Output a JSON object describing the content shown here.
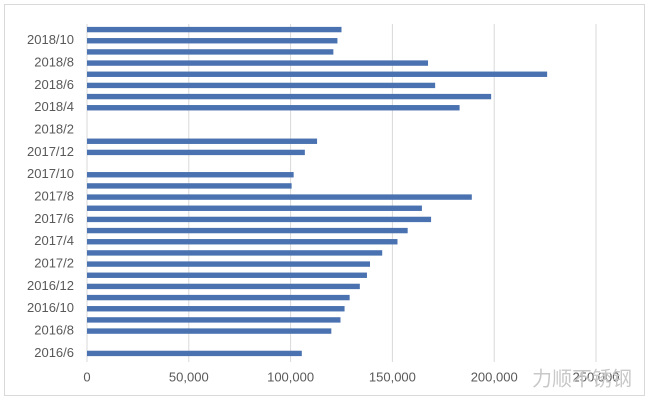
{
  "chart_data": {
    "type": "hbar",
    "categories": [
      "2016/6",
      null,
      "2016/8",
      null,
      "2016/10",
      null,
      "2016/12",
      null,
      "2017/2",
      null,
      "2017/4",
      null,
      "2017/6",
      null,
      "2017/8",
      null,
      "2017/10",
      null,
      "2017/12",
      null,
      "2018/2",
      null,
      "2018/4",
      null,
      "2018/6",
      null,
      "2018/8",
      null,
      "2018/10",
      null
    ],
    "values": [
      105500,
      null,
      120000,
      124500,
      126500,
      129000,
      134000,
      137500,
      139000,
      145000,
      152500,
      157500,
      169000,
      164500,
      189000,
      100500,
      101500,
      null,
      107000,
      113000,
      null,
      null,
      183000,
      198500,
      171000,
      226000,
      167500,
      121000,
      123000,
      125000
    ],
    "color": "#4a72b0",
    "xlim": [
      0,
      250000
    ],
    "xticks": [
      0,
      {
        "value": 50000,
        "label": "50,000"
      },
      {
        "value": 100000,
        "label": "100,000"
      },
      {
        "value": 150000,
        "label": "150,000"
      },
      {
        "value": 200000,
        "label": "200,000"
      },
      {
        "value": 250000,
        "label": "250,000"
      }
    ],
    "grid": true,
    "watermark": "力顺不锈钢"
  }
}
